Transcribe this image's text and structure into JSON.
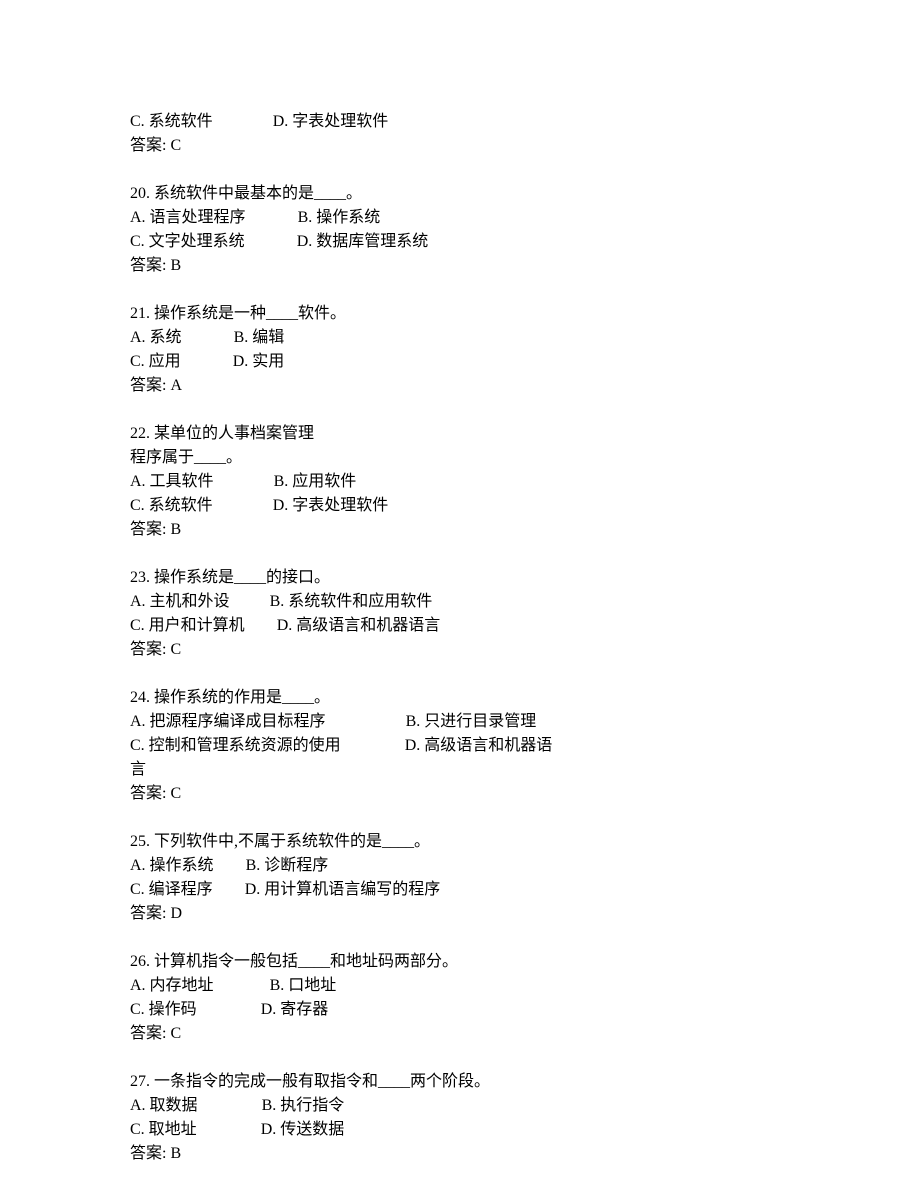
{
  "partial": {
    "optC": "C. 系统软件",
    "optD": "D. 字表处理软件",
    "answer": "答案: C"
  },
  "q20": {
    "stem": "20. 系统软件中最基本的是____。",
    "optA": "A. 语言处理程序",
    "optB": "B. 操作系统",
    "optC": "C. 文字处理系统",
    "optD": "D. 数据库管理系统",
    "answer": "答案: B"
  },
  "q21": {
    "stem": "21. 操作系统是一种____软件。",
    "optA": "A. 系统",
    "optB": "B. 编辑",
    "optC": "C. 应用",
    "optD": "D. 实用",
    "answer": "答案: A"
  },
  "q22": {
    "stem1": "22. 某单位的人事档案管理",
    "stem2": "程序属于____。",
    "optA": "A. 工具软件",
    "optB": "B. 应用软件",
    "optC": "C. 系统软件",
    "optD": "D. 字表处理软件",
    "answer": "答案: B"
  },
  "q23": {
    "stem": "23. 操作系统是____的接口。",
    "optA": "A. 主机和外设",
    "optB": "B. 系统软件和应用软件",
    "optC": "C. 用户和计算机",
    "optD": "D. 高级语言和机器语言",
    "answer": "答案: C"
  },
  "q24": {
    "stem": "24. 操作系统的作用是____。",
    "optA": "A. 把源程序编译成目标程序",
    "optB": "B. 只进行目录管理",
    "optC": "C. 控制和管理系统资源的使用",
    "optD": "D. 高级语言和机器语",
    "optDcont": "言",
    "answer": "答案: C"
  },
  "q25": {
    "stem": "25. 下列软件中,不属于系统软件的是____。",
    "optA": "A. 操作系统",
    "optB": "B. 诊断程序",
    "optC": "C. 编译程序",
    "optD": "D. 用计算机语言编写的程序",
    "answer": "答案: D"
  },
  "q26": {
    "stem": "26. 计算机指令一般包括____和地址码两部分。",
    "optA": "A. 内存地址",
    "optB": "B. 口地址",
    "optC": "C. 操作码",
    "optD": "D. 寄存器",
    "answer": "答案: C"
  },
  "q27": {
    "stem": "27. 一条指令的完成一般有取指令和____两个阶段。",
    "optA": "A. 取数据",
    "optB": "B. 执行指令",
    "optC": "C. 取地址",
    "optD": "D. 传送数据",
    "answer": "答案: B"
  }
}
